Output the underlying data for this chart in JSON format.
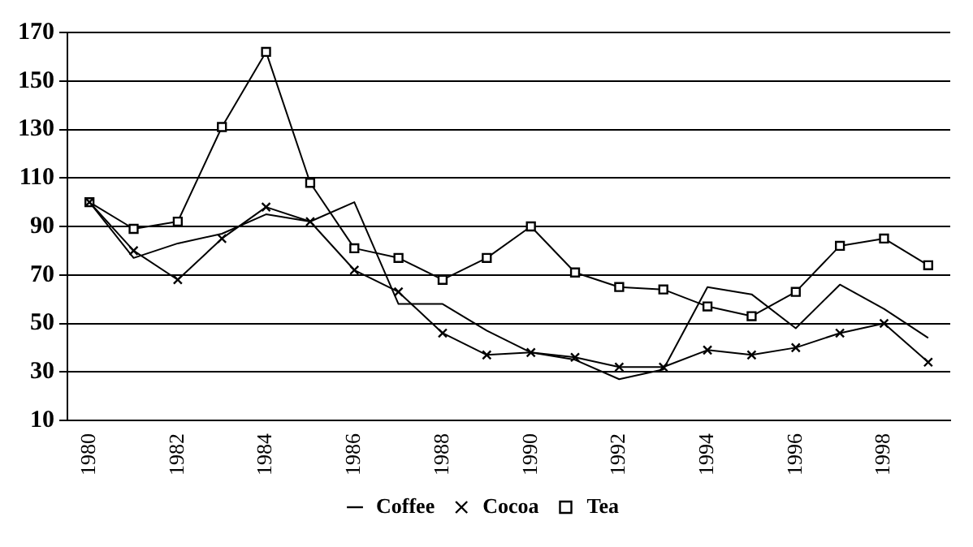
{
  "chart_data": {
    "type": "line",
    "categories": [
      "1980",
      null,
      "1982",
      null,
      "1984",
      null,
      "1986",
      null,
      "1988",
      null,
      "1990",
      null,
      "1992",
      null,
      "1994",
      null,
      "1996",
      null,
      "1998",
      null
    ],
    "series": [
      {
        "name": "Coffee",
        "color": "#000000",
        "marker": "none",
        "values": [
          100,
          77,
          83,
          87,
          95,
          92,
          100,
          58,
          58,
          47,
          38,
          35,
          27,
          31,
          65,
          62,
          48,
          66,
          56,
          44
        ]
      },
      {
        "name": "Cocoa",
        "color": "#000000",
        "marker": "cross",
        "values": [
          100,
          80,
          68,
          85,
          98,
          92,
          72,
          63,
          46,
          37,
          38,
          36,
          32,
          32,
          39,
          37,
          40,
          46,
          50,
          34
        ]
      },
      {
        "name": "Tea",
        "color": "#000000",
        "marker": "square",
        "values": [
          100,
          89,
          92,
          131,
          162,
          108,
          81,
          77,
          68,
          77,
          90,
          71,
          65,
          64,
          57,
          53,
          63,
          82,
          85,
          74
        ]
      }
    ],
    "ylim": [
      10,
      170
    ],
    "yticks": [
      10,
      30,
      50,
      70,
      90,
      110,
      130,
      150,
      170
    ],
    "grid": "y",
    "legend": "bottom"
  }
}
